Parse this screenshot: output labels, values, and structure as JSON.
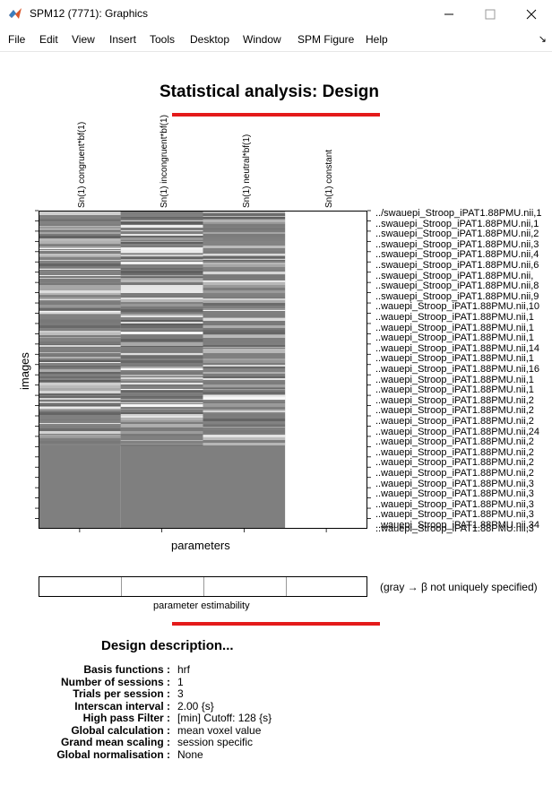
{
  "window": {
    "title": "SPM12 (7771): Graphics",
    "controls": {
      "minimize": "—",
      "maximize": "☐",
      "close": "✕"
    },
    "icon": "matlab-icon"
  },
  "menu": {
    "items": [
      "File",
      "Edit",
      "View",
      "Insert",
      "Tools",
      "Desktop",
      "Window",
      "SPM Figure",
      "Help"
    ],
    "dock_icon": "↘"
  },
  "figure": {
    "title": "Statistical analysis: Design",
    "accent_color": "#e41a1a",
    "columns": [
      "Sn(1) congruent*bf(1)",
      "Sn(1) incongruent*bf(1)",
      "Sn(1) neutral*bf(1)",
      "Sn(1) constant"
    ],
    "rows": [
      "../swauepi_Stroop_iPAT1.88PMU.nii,1",
      "..swauepi_Stroop_iPAT1.88PMU.nii,1",
      "..swauepi_Stroop_iPAT1.88PMU.nii,2",
      "..swauepi_Stroop_iPAT1.88PMU.nii,3",
      "..swauepi_Stroop_iPAT1.88PMU.nii,4",
      "..swauepi_Stroop_iPAT1.88PMU.nii,6",
      "..swauepi_Stroop_iPAT1.88PMU.nii,",
      "..swauepi_Stroop_iPAT1.88PMU.nii,8",
      "..swauepi_Stroop_iPAT1.88PMU.nii,9",
      "..wauepi_Stroop_iPAT1.88PMU.nii,10",
      "..wauepi_Stroop_iPAT1.88PMU.nii,1",
      "..wauepi_Stroop_iPAT1.88PMU.nii,1",
      "..wauepi_Stroop_iPAT1.88PMU.nii,1",
      "..wauepi_Stroop_iPAT1.88PMU.nii,14",
      "..wauepi_Stroop_iPAT1.88PMU.nii,1",
      "..wauepi_Stroop_iPAT1.88PMU.nii,16",
      "..wauepi_Stroop_iPAT1.88PMU.nii,1",
      "..wauepi_Stroop_iPAT1.88PMU.nii,1",
      "..wauepi_Stroop_iPAT1.88PMU.nii,2",
      "..wauepi_Stroop_iPAT1.88PMU.nii,2",
      "..wauepi_Stroop_iPAT1.88PMU.nii,2",
      "..wauepi_Stroop_iPAT1.88PMU.nii,24",
      "..wauepi_Stroop_iPAT1.88PMU.nii,2",
      "..wauepi_Stroop_iPAT1.88PMU.nii,2",
      "..wauepi_Stroop_iPAT1.88PMU.nii,2",
      "..wauepi_Stroop_iPAT1.88PMU.nii,2",
      "..wauepi_Stroop_iPAT1.88PMU.nii,3",
      "..wauepi_Stroop_iPAT1.88PMU.nii,3",
      "..wauepi_Stroop_iPAT1.88PMU.nii,3",
      "..wauepi_Stroop_iPAT1.88PMU.nii,3",
      "..wauepi_Stroop_iPAT1.88PMU.nii,34",
      "..wauepi_Stroop_iPAT1.88PMU.nii,3"
    ],
    "x_axis_label": "parameters",
    "y_axis_label": "images",
    "estimability_label": "parameter estimability",
    "estimability_note": "(gray → β not uniquely specified)"
  },
  "description": {
    "title": "Design description...",
    "rows": [
      {
        "key": "Basis functions :",
        "value": "hrf"
      },
      {
        "key": "Number of sessions :",
        "value": "1"
      },
      {
        "key": "Trials per session :",
        "value": "3"
      },
      {
        "key": "Interscan interval :",
        "value": "2.00 {s}"
      },
      {
        "key": "High pass Filter :",
        "value": "[min] Cutoff: 128 {s}"
      },
      {
        "key": "Global calculation :",
        "value": "mean voxel value"
      },
      {
        "key": "Grand mean scaling :",
        "value": "session specific"
      },
      {
        "key": "Global normalisation :",
        "value": "None"
      }
    ]
  }
}
